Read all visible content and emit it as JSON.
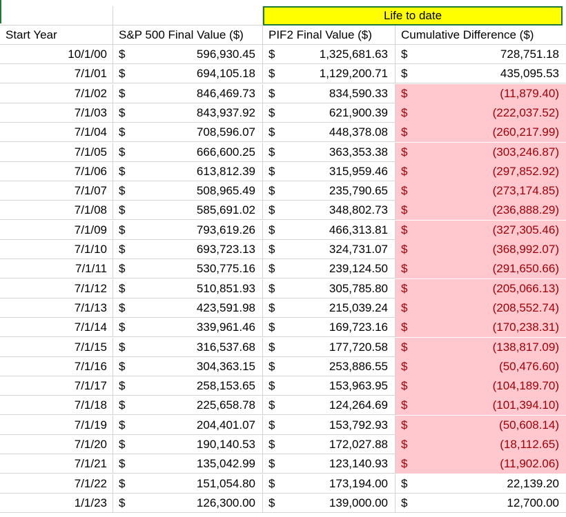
{
  "banner": "Life to date",
  "headers": {
    "start_year": "Start Year",
    "sp500": "S&P 500 Final Value ($)",
    "pif2": "PIF2 Final Value ($)",
    "cum_diff": "Cumulative Difference ($)"
  },
  "currency_symbol": "$",
  "colors": {
    "negative_fill": "#ffc7ce",
    "negative_text": "#9c0006",
    "banner_fill": "#ffff00",
    "selection_border": "#1f7a3a"
  },
  "rows": [
    {
      "year": "10/1/00",
      "sp500": "596,930.45",
      "pif2": "1,325,681.63",
      "diff": "728,751.18",
      "negative": false
    },
    {
      "year": "7/1/01",
      "sp500": "694,105.18",
      "pif2": "1,129,200.71",
      "diff": "435,095.53",
      "negative": false
    },
    {
      "year": "7/1/02",
      "sp500": "846,469.73",
      "pif2": "834,590.33",
      "diff": "(11,879.40)",
      "negative": true
    },
    {
      "year": "7/1/03",
      "sp500": "843,937.92",
      "pif2": "621,900.39",
      "diff": "(222,037.52)",
      "negative": true
    },
    {
      "year": "7/1/04",
      "sp500": "708,596.07",
      "pif2": "448,378.08",
      "diff": "(260,217.99)",
      "negative": true
    },
    {
      "year": "7/1/05",
      "sp500": "666,600.25",
      "pif2": "363,353.38",
      "diff": "(303,246.87)",
      "negative": true
    },
    {
      "year": "7/1/06",
      "sp500": "613,812.39",
      "pif2": "315,959.46",
      "diff": "(297,852.92)",
      "negative": true
    },
    {
      "year": "7/1/07",
      "sp500": "508,965.49",
      "pif2": "235,790.65",
      "diff": "(273,174.85)",
      "negative": true
    },
    {
      "year": "7/1/08",
      "sp500": "585,691.02",
      "pif2": "348,802.73",
      "diff": "(236,888.29)",
      "negative": true
    },
    {
      "year": "7/1/09",
      "sp500": "793,619.26",
      "pif2": "466,313.81",
      "diff": "(327,305.46)",
      "negative": true
    },
    {
      "year": "7/1/10",
      "sp500": "693,723.13",
      "pif2": "324,731.07",
      "diff": "(368,992.07)",
      "negative": true
    },
    {
      "year": "7/1/11",
      "sp500": "530,775.16",
      "pif2": "239,124.50",
      "diff": "(291,650.66)",
      "negative": true
    },
    {
      "year": "7/1/12",
      "sp500": "510,851.93",
      "pif2": "305,785.80",
      "diff": "(205,066.13)",
      "negative": true
    },
    {
      "year": "7/1/13",
      "sp500": "423,591.98",
      "pif2": "215,039.24",
      "diff": "(208,552.74)",
      "negative": true
    },
    {
      "year": "7/1/14",
      "sp500": "339,961.46",
      "pif2": "169,723.16",
      "diff": "(170,238.31)",
      "negative": true
    },
    {
      "year": "7/1/15",
      "sp500": "316,537.68",
      "pif2": "177,720.58",
      "diff": "(138,817.09)",
      "negative": true
    },
    {
      "year": "7/1/16",
      "sp500": "304,363.15",
      "pif2": "253,886.55",
      "diff": "(50,476.60)",
      "negative": true
    },
    {
      "year": "7/1/17",
      "sp500": "258,153.65",
      "pif2": "153,963.95",
      "diff": "(104,189.70)",
      "negative": true
    },
    {
      "year": "7/1/18",
      "sp500": "225,658.78",
      "pif2": "124,264.69",
      "diff": "(101,394.10)",
      "negative": true
    },
    {
      "year": "7/1/19",
      "sp500": "204,401.07",
      "pif2": "153,792.93",
      "diff": "(50,608.14)",
      "negative": true
    },
    {
      "year": "7/1/20",
      "sp500": "190,140.53",
      "pif2": "172,027.88",
      "diff": "(18,112.65)",
      "negative": true
    },
    {
      "year": "7/1/21",
      "sp500": "135,042.99",
      "pif2": "123,140.93",
      "diff": "(11,902.06)",
      "negative": true
    },
    {
      "year": "7/1/22",
      "sp500": "151,054.80",
      "pif2": "173,194.00",
      "diff": "22,139.20",
      "negative": false
    },
    {
      "year": "1/1/23",
      "sp500": "126,300.00",
      "pif2": "139,000.00",
      "diff": "12,700.00",
      "negative": false
    }
  ]
}
